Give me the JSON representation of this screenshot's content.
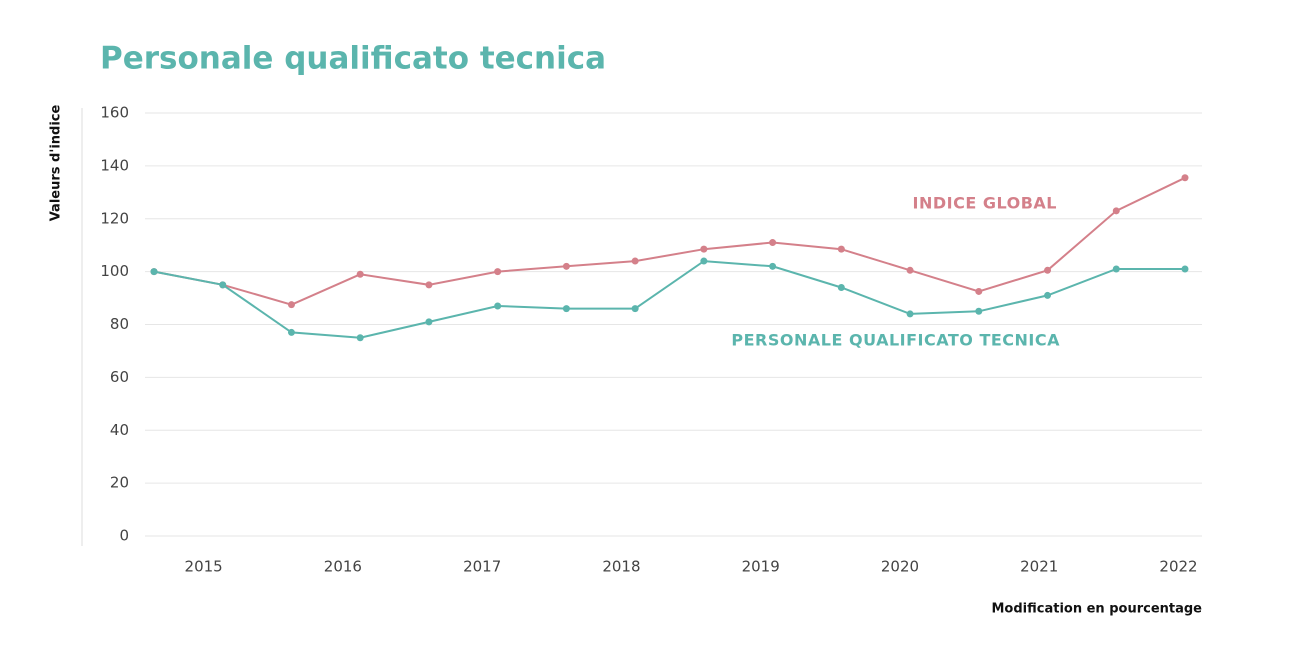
{
  "chart_data": {
    "type": "line",
    "title": "Personale qualificato tecnica",
    "y_label": "Valeurs d'indice",
    "x_label": "Modification en pourcentage",
    "categories": [
      null,
      "2015",
      null,
      "2016",
      null,
      "2017",
      null,
      "2018",
      null,
      "2019",
      null,
      "2020",
      null,
      "2021",
      null,
      "2022"
    ],
    "series": [
      {
        "name": "INDICE GLOBAL",
        "color": "#d4808a",
        "values": [
          100,
          95,
          87.5,
          99,
          95,
          100,
          102,
          104,
          108.5,
          111,
          108.5,
          100.5,
          92.5,
          100.5,
          123,
          135.5
        ]
      },
      {
        "name": "PERSONALE QUALIFICATO TECNICA",
        "color": "#5bb5ad",
        "values": [
          100,
          95,
          77,
          75,
          81,
          87,
          86,
          86,
          104,
          102,
          94,
          84,
          85,
          91,
          101,
          101
        ]
      }
    ],
    "ylim": [
      0,
      160
    ],
    "yticks": [
      0,
      20,
      40,
      60,
      80,
      100,
      120,
      140,
      160
    ],
    "grid": true
  }
}
